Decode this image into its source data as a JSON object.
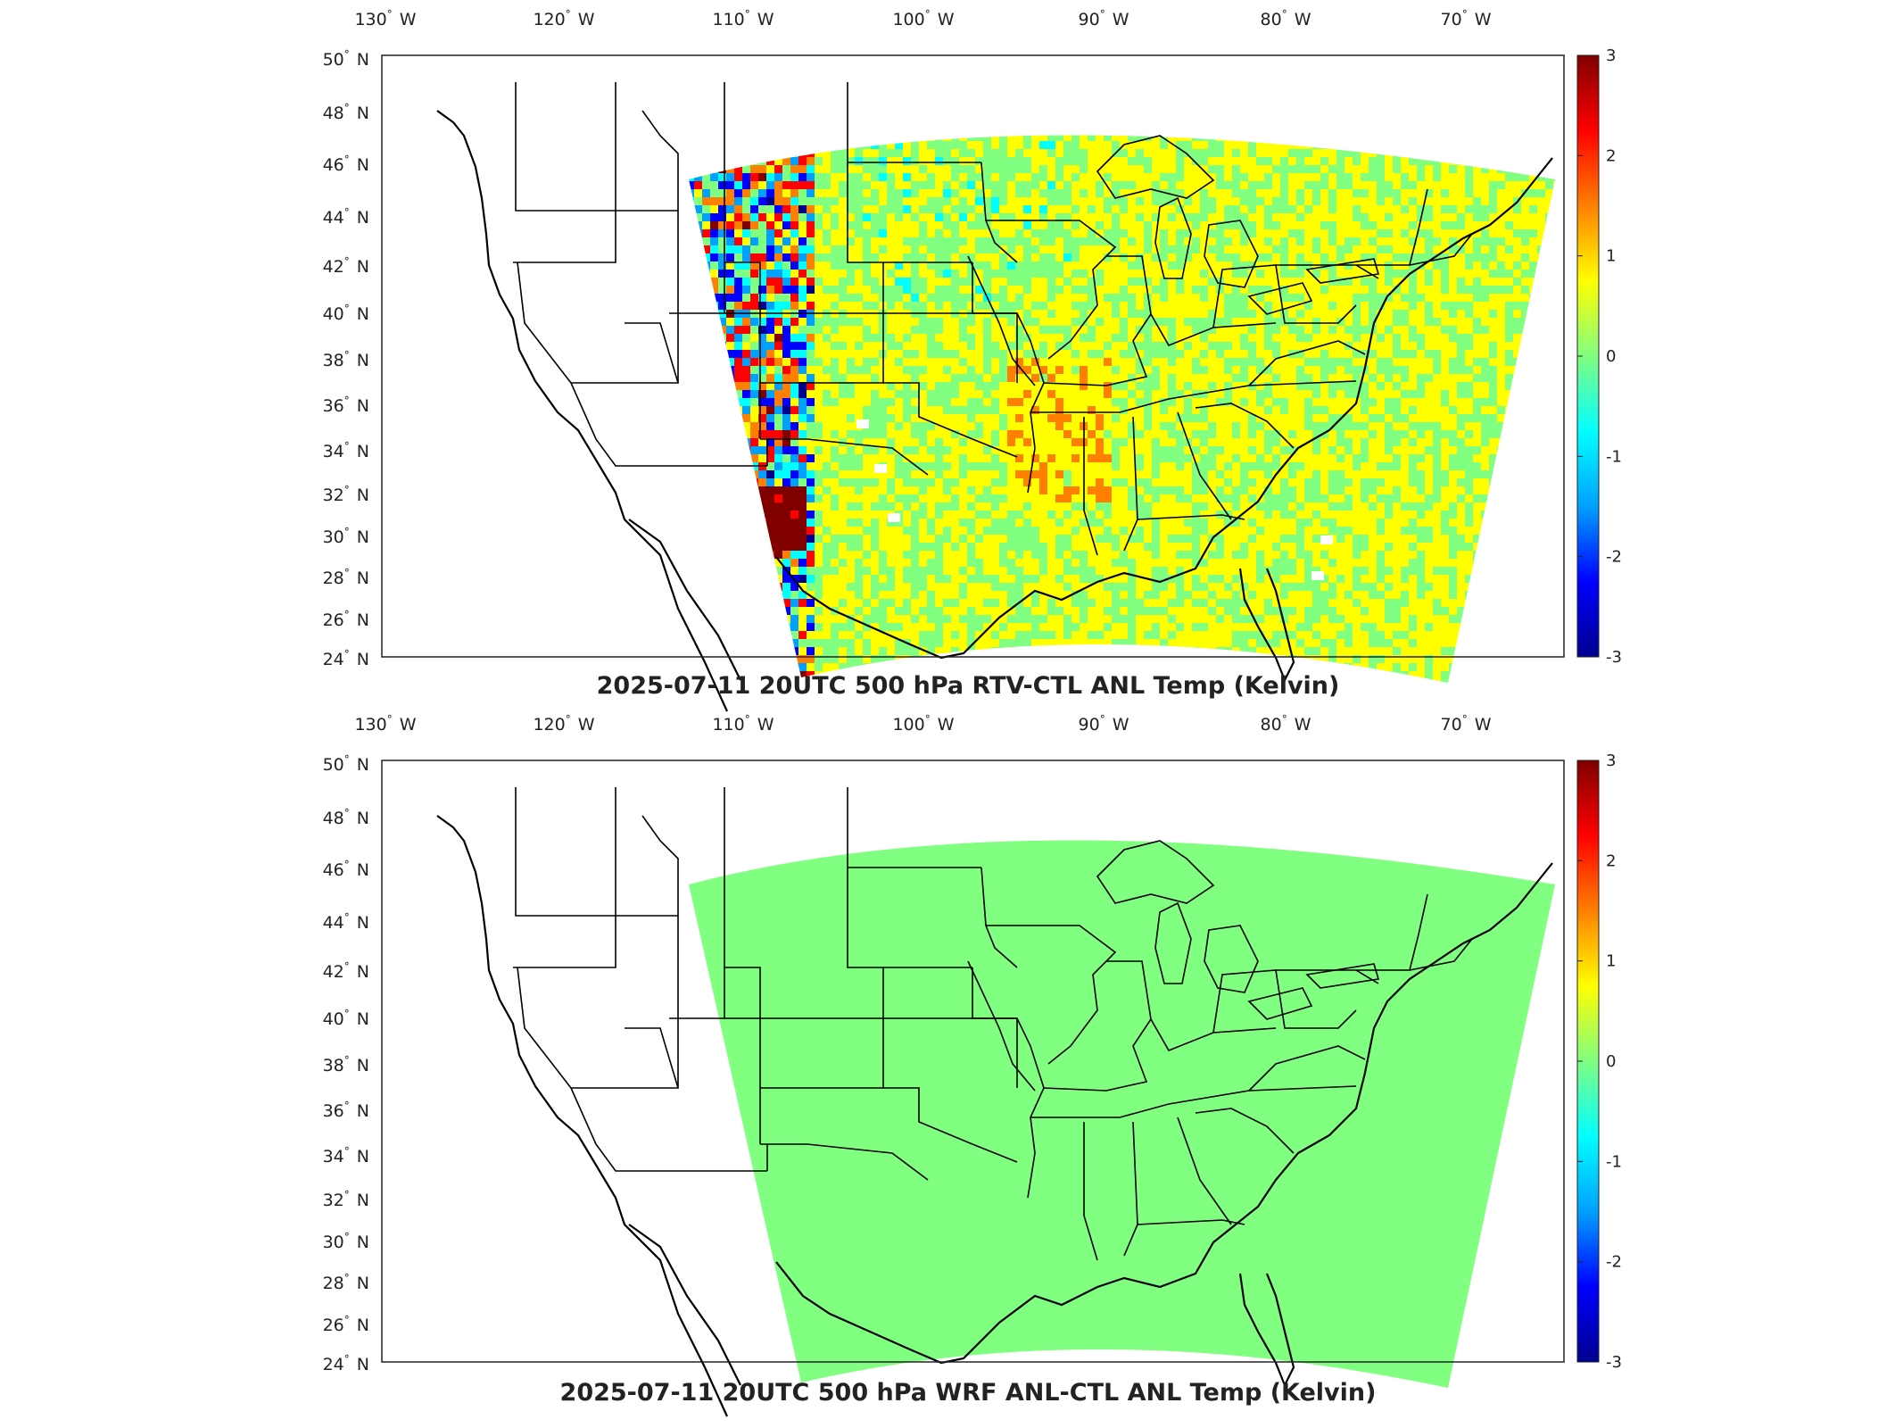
{
  "figure": {
    "lon_ticks": [
      {
        "num": "130",
        "hemi": "W"
      },
      {
        "num": "120",
        "hemi": "W"
      },
      {
        "num": "110",
        "hemi": "W"
      },
      {
        "num": "100",
        "hemi": "W"
      },
      {
        "num": "90",
        "hemi": "W"
      },
      {
        "num": "80",
        "hemi": "W"
      },
      {
        "num": "70",
        "hemi": "W"
      }
    ],
    "lat_ticks": [
      {
        "num": "50",
        "hemi": "N"
      },
      {
        "num": "48",
        "hemi": "N"
      },
      {
        "num": "46",
        "hemi": "N"
      },
      {
        "num": "44",
        "hemi": "N"
      },
      {
        "num": "42",
        "hemi": "N"
      },
      {
        "num": "40",
        "hemi": "N"
      },
      {
        "num": "38",
        "hemi": "N"
      },
      {
        "num": "36",
        "hemi": "N"
      },
      {
        "num": "34",
        "hemi": "N"
      },
      {
        "num": "32",
        "hemi": "N"
      },
      {
        "num": "30",
        "hemi": "N"
      },
      {
        "num": "28",
        "hemi": "N"
      },
      {
        "num": "26",
        "hemi": "N"
      },
      {
        "num": "24",
        "hemi": "N"
      }
    ],
    "colorbar_labels": [
      "3",
      "2",
      "1",
      "0",
      "-1",
      "-2",
      "-3"
    ],
    "colormap": [
      "#00008f",
      "#0000ff",
      "#00a0ff",
      "#00ffff",
      "#80ff80",
      "#ffff00",
      "#ff8000",
      "#ff0000",
      "#800000"
    ]
  },
  "panels": [
    {
      "title": "2025-07-11 20UTC 500 hPa RTV-CTL ANL Temp (Kelvin)",
      "field": "noisy-difference"
    },
    {
      "title": "2025-07-11 20UTC 500 hPa WRF ANL-CTL ANL Temp (Kelvin)",
      "field": "zero-difference",
      "uniform_color": "#80ff80"
    }
  ],
  "chart_data": {
    "type": "heatmap",
    "map_extent": {
      "lon": [
        -132,
        -64
      ],
      "lat": [
        24,
        50
      ]
    },
    "color_scale": {
      "min": -3,
      "max": 3,
      "ticks": [
        3,
        2,
        1,
        0,
        -1,
        -2,
        -3
      ]
    },
    "panels": [
      {
        "title": "2025-07-11 20UTC 500 hPa RTV-CTL ANL Temp (Kelvin)",
        "value_range_shown": [
          -3,
          3
        ]
      },
      {
        "title": "2025-07-11 20UTC 500 hPa WRF ANL-CTL ANL Temp (Kelvin)",
        "value_range_shown": [
          0,
          0
        ]
      }
    ]
  }
}
